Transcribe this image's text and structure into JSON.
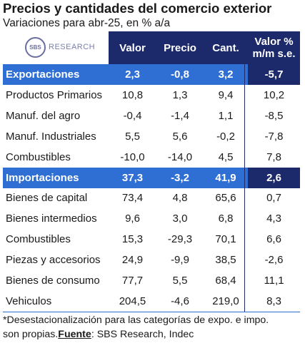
{
  "title": "Precios y cantidades del comercio exterior",
  "subtitle": "Variaciones para abr-25, en % a/a",
  "logo": {
    "badge": "SBS",
    "text": "RESEARCH"
  },
  "headers": {
    "valor": "Valor",
    "precio": "Precio",
    "cant": "Cant.",
    "mm_line1": "Valor %",
    "mm_line2": "m/m s.e."
  },
  "rows": [
    {
      "label": "Exportaciones",
      "valor": "2,3",
      "precio": "-0,8",
      "cant": "3,2",
      "mm": "-5,7",
      "section": true
    },
    {
      "label": "Productos Primarios",
      "valor": "10,8",
      "precio": "1,3",
      "cant": "9,4",
      "mm": "10,2"
    },
    {
      "label": "Manuf. del agro",
      "valor": "-0,4",
      "precio": "-1,4",
      "cant": "1,1",
      "mm": "-8,5"
    },
    {
      "label": "Manuf. Industriales",
      "valor": "5,5",
      "precio": "5,6",
      "cant": "-0,2",
      "mm": "-7,8"
    },
    {
      "label": "Combustibles",
      "valor": "-10,0",
      "precio": "-14,0",
      "cant": "4,5",
      "mm": "7,8"
    },
    {
      "label": "Importaciones",
      "valor": "37,3",
      "precio": "-3,2",
      "cant": "41,9",
      "mm": "2,6",
      "section": true
    },
    {
      "label": "Bienes de capital",
      "valor": "73,4",
      "precio": "4,8",
      "cant": "65,6",
      "mm": "0,7"
    },
    {
      "label": "Bienes intermedios",
      "valor": "9,6",
      "precio": "3,0",
      "cant": "6,8",
      "mm": "4,3"
    },
    {
      "label": "Combustibles",
      "valor": "15,3",
      "precio": "-29,3",
      "cant": "70,1",
      "mm": "6,6"
    },
    {
      "label": "Piezas y accesorios",
      "valor": "24,9",
      "precio": "-9,9",
      "cant": "38,5",
      "mm": "-2,6"
    },
    {
      "label": "Bienes de consumo",
      "valor": "77,7",
      "precio": "5,5",
      "cant": "68,4",
      "mm": "11,1"
    },
    {
      "label": "Vehiculos",
      "valor": "204,5",
      "precio": "-4,6",
      "cant": "219,0",
      "mm": "8,3"
    }
  ],
  "footnote": {
    "line1": "*Desestacionalización para las categorías de expo. e impo.",
    "line2_prefix": "son propias.",
    "source_label": "Fuente",
    "source_text": ": SBS Research, Indec"
  },
  "colors": {
    "header_navy": "#1c2a6b",
    "section_blue": "#2f6fd3"
  }
}
